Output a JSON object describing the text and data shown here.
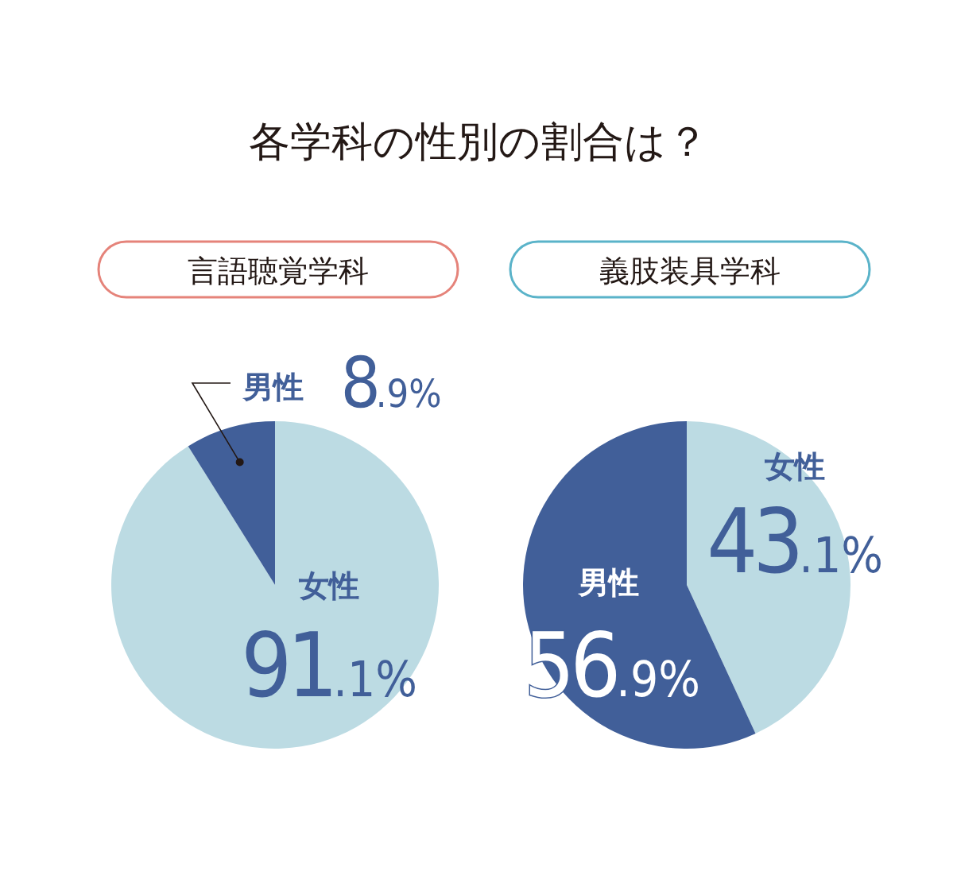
{
  "chart_data": [
    {
      "type": "pie",
      "title": "各学科の性別の割合は？",
      "subtitle": "言語聴覚学科",
      "categories": [
        "女性",
        "男性"
      ],
      "values": [
        91.1,
        8.9
      ],
      "colors": [
        "#bcdbe3",
        "#415f99"
      ],
      "value_labels": [
        "91.1%",
        "8.9%"
      ]
    },
    {
      "type": "pie",
      "subtitle": "義肢装具学科",
      "categories": [
        "女性",
        "男性"
      ],
      "values": [
        43.1,
        56.9
      ],
      "colors": [
        "#bcdbe3",
        "#415f99"
      ],
      "value_labels": [
        "43.1%",
        "56.9%"
      ]
    }
  ]
}
